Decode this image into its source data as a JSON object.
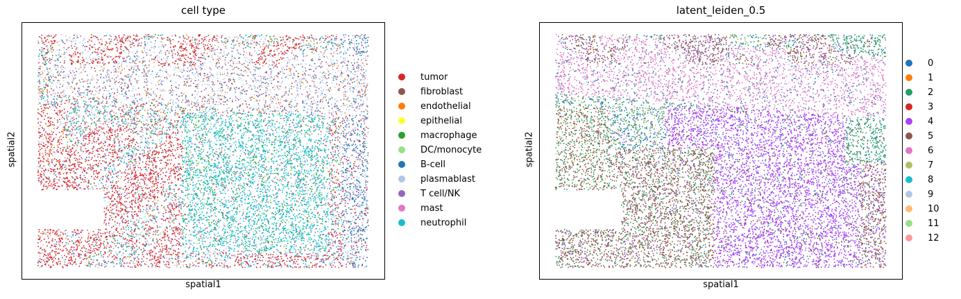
{
  "chart_data": [
    {
      "type": "scatter",
      "title": "cell type",
      "xlabel": "spatial1",
      "ylabel": "spatial2",
      "grid": false,
      "ticks": "none",
      "legend_placement": "right",
      "series": [
        {
          "name": "tumor",
          "color": "#d62728"
        },
        {
          "name": "fibroblast",
          "color": "#8c564b"
        },
        {
          "name": "endothelial",
          "color": "#ff7f0e"
        },
        {
          "name": "epithelial",
          "color": "#ffff33"
        },
        {
          "name": "macrophage",
          "color": "#2ca02c"
        },
        {
          "name": "DC/monocyte",
          "color": "#98df8a"
        },
        {
          "name": "B-cell",
          "color": "#1f77b4"
        },
        {
          "name": "plasmablast",
          "color": "#aec7e8"
        },
        {
          "name": "T cell/NK",
          "color": "#9467bd"
        },
        {
          "name": "mast",
          "color": "#e377c2"
        },
        {
          "name": "neutrophil",
          "color": "#17becf"
        }
      ]
    },
    {
      "type": "scatter",
      "title": "latent_leiden_0.5",
      "xlabel": "spatial1",
      "ylabel": "spatial2",
      "grid": false,
      "ticks": "none",
      "legend_placement": "right",
      "series": [
        {
          "name": "0",
          "color": "#1f77b4"
        },
        {
          "name": "1",
          "color": "#ff7f0e"
        },
        {
          "name": "2",
          "color": "#279e68"
        },
        {
          "name": "3",
          "color": "#d62728"
        },
        {
          "name": "4",
          "color": "#aa40fc"
        },
        {
          "name": "5",
          "color": "#8c564b"
        },
        {
          "name": "6",
          "color": "#e377c2"
        },
        {
          "name": "7",
          "color": "#b5bd61"
        },
        {
          "name": "8",
          "color": "#17becf"
        },
        {
          "name": "9",
          "color": "#aec7e8"
        },
        {
          "name": "10",
          "color": "#ffbb78"
        },
        {
          "name": "11",
          "color": "#98df8a"
        },
        {
          "name": "12",
          "color": "#ff9896"
        }
      ]
    }
  ]
}
